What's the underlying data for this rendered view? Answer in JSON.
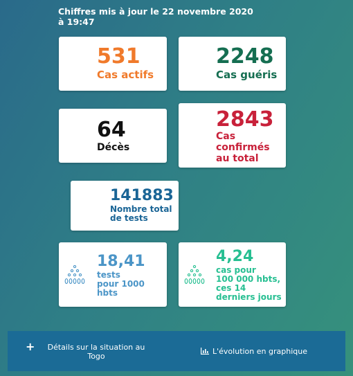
{
  "header": {
    "line1": "Chiffres mis à jour le 22 novembre 2020",
    "line2": "à 19:47"
  },
  "cards": {
    "active": {
      "value": "531",
      "label": "Cas actifs"
    },
    "healed": {
      "value": "2248",
      "label": "Cas guéris"
    },
    "deaths": {
      "value": "64",
      "label": "Décès"
    },
    "confirmed": {
      "value": "2843",
      "label_lines": [
        "Cas",
        "confirmés",
        "au total"
      ]
    },
    "tests": {
      "value": "141883",
      "label_lines": [
        "Nombre total",
        "de tests"
      ]
    },
    "tests_rate": {
      "value": "18,41",
      "label_lines": [
        "tests",
        "pour 1000",
        "hbts"
      ],
      "icon": "people-group-icon"
    },
    "cases_rate": {
      "value": "4,24",
      "label_lines": [
        "cas pour",
        "100 000 hbts,",
        "ces 14",
        "derniers jours"
      ],
      "icon": "people-group-icon"
    }
  },
  "footer": {
    "details_label": "Détails sur la situation au Togo",
    "evolution_label": "L'évolution en graphique",
    "details_icon": "plus-icon",
    "evolution_icon": "bar-chart-icon"
  },
  "colors": {
    "orange": "#f07a2b",
    "green": "#156e51",
    "red": "#c8213a",
    "blue": "#1a6596",
    "light_blue": "#4b95c7",
    "teal": "#27bf92"
  }
}
